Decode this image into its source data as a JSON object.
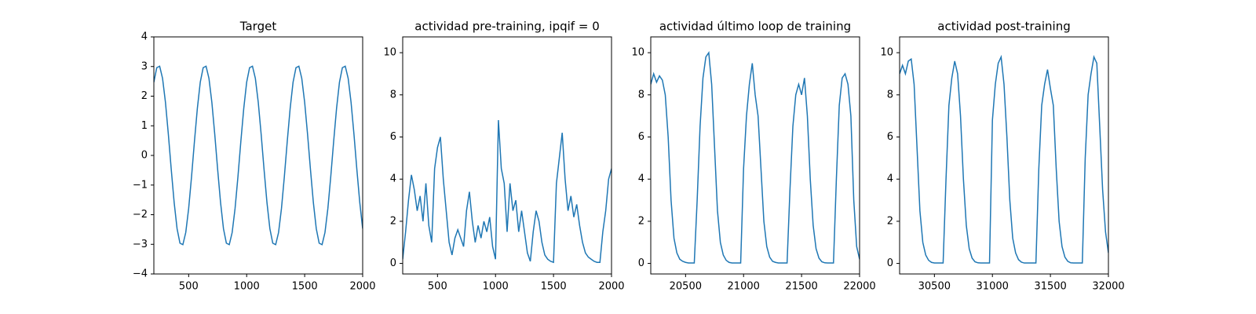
{
  "chart_data": [
    {
      "type": "line",
      "title": "Target",
      "xlim": [
        200,
        2000
      ],
      "ylim": [
        -4,
        4
      ],
      "xticks": [
        500,
        1000,
        1500,
        2000
      ],
      "yticks": [
        {
          "value": -4,
          "label": "−4"
        },
        {
          "value": -3,
          "label": "−3"
        },
        {
          "value": -2,
          "label": "−2"
        },
        {
          "value": -1,
          "label": "−1"
        },
        0,
        1,
        2,
        3,
        4
      ],
      "x": [
        200,
        225,
        250,
        275,
        300,
        325,
        350,
        375,
        400,
        425,
        450,
        475,
        500,
        525,
        550,
        575,
        600,
        625,
        650,
        675,
        700,
        725,
        750,
        775,
        800,
        825,
        850,
        875,
        900,
        925,
        950,
        975,
        1000,
        1025,
        1050,
        1075,
        1100,
        1125,
        1150,
        1175,
        1200,
        1225,
        1250,
        1275,
        1300,
        1325,
        1350,
        1375,
        1400,
        1425,
        1450,
        1475,
        1500,
        1525,
        1550,
        1575,
        1600,
        1625,
        1650,
        1675,
        1700,
        1725,
        1750,
        1775,
        1800,
        1825,
        1850,
        1875,
        1900,
        1925,
        1950,
        1975,
        2000
      ],
      "series": [
        {
          "color": "#1f77b4",
          "values": [
            2.47,
            2.96,
            3.01,
            2.6,
            1.79,
            0.71,
            -0.48,
            -1.59,
            -2.47,
            -2.96,
            -3.01,
            -2.6,
            -1.79,
            -0.71,
            0.48,
            1.59,
            2.47,
            2.96,
            3.01,
            2.6,
            1.79,
            0.71,
            -0.48,
            -1.59,
            -2.47,
            -2.96,
            -3.01,
            -2.6,
            -1.79,
            -0.71,
            0.48,
            1.59,
            2.47,
            2.96,
            3.01,
            2.6,
            1.79,
            0.71,
            -0.48,
            -1.59,
            -2.47,
            -2.96,
            -3.01,
            -2.6,
            -1.79,
            -0.71,
            0.48,
            1.59,
            2.47,
            2.96,
            3.01,
            2.6,
            1.79,
            0.71,
            -0.48,
            -1.59,
            -2.47,
            -2.96,
            -3.01,
            -2.6,
            -1.79,
            -0.71,
            0.48,
            1.59,
            2.47,
            2.96,
            3.01,
            2.6,
            1.79,
            0.71,
            -0.48,
            -1.59,
            -2.47
          ]
        }
      ]
    },
    {
      "type": "line",
      "title": "actividad pre-training, ipqif = 0",
      "xlim": [
        200,
        2000
      ],
      "ylim": [
        -0.5,
        10.75
      ],
      "xticks": [
        500,
        1000,
        1500,
        2000
      ],
      "yticks": [
        0,
        2,
        4,
        6,
        8,
        10
      ],
      "x": [
        200,
        225,
        250,
        275,
        300,
        325,
        350,
        375,
        400,
        425,
        450,
        475,
        500,
        525,
        550,
        575,
        600,
        625,
        650,
        675,
        700,
        725,
        750,
        775,
        800,
        825,
        850,
        875,
        900,
        925,
        950,
        975,
        1000,
        1025,
        1050,
        1075,
        1100,
        1125,
        1150,
        1175,
        1200,
        1225,
        1250,
        1275,
        1300,
        1325,
        1350,
        1375,
        1400,
        1425,
        1450,
        1475,
        1500,
        1525,
        1550,
        1575,
        1600,
        1625,
        1650,
        1675,
        1700,
        1725,
        1750,
        1775,
        1800,
        1825,
        1850,
        1875,
        1900,
        1925,
        1950,
        1975,
        2000
      ],
      "series": [
        {
          "color": "#1f77b4",
          "values": [
            0.2,
            1.5,
            3.0,
            4.2,
            3.5,
            2.5,
            3.2,
            2.0,
            3.8,
            1.8,
            1.0,
            4.5,
            5.5,
            6.0,
            4.0,
            2.5,
            1.0,
            0.4,
            1.2,
            1.6,
            1.2,
            0.8,
            2.5,
            3.4,
            2.0,
            1.0,
            1.8,
            1.2,
            2.0,
            1.5,
            2.2,
            0.8,
            0.2,
            6.8,
            4.5,
            3.8,
            1.5,
            3.8,
            2.5,
            3.0,
            1.5,
            2.5,
            1.5,
            0.5,
            0.1,
            1.5,
            2.5,
            2.0,
            1.0,
            0.4,
            0.2,
            0.1,
            0.05,
            3.8,
            5.0,
            6.2,
            4.0,
            2.5,
            3.2,
            2.2,
            2.8,
            1.8,
            1.0,
            0.5,
            0.3,
            0.2,
            0.1,
            0.05,
            0.05,
            1.5,
            2.5,
            4.0,
            4.5
          ]
        }
      ]
    },
    {
      "type": "line",
      "title": "actividad último loop de training",
      "xlim": [
        20200,
        22000
      ],
      "ylim": [
        -0.5,
        10.75
      ],
      "xticks": [
        20500,
        21000,
        21500,
        22000
      ],
      "yticks": [
        0,
        2,
        4,
        6,
        8,
        10
      ],
      "x": [
        20200,
        20225,
        20250,
        20275,
        20300,
        20325,
        20350,
        20375,
        20400,
        20425,
        20450,
        20475,
        20500,
        20525,
        20550,
        20575,
        20600,
        20625,
        20650,
        20675,
        20700,
        20725,
        20750,
        20775,
        20800,
        20825,
        20850,
        20875,
        20900,
        20925,
        20950,
        20975,
        21000,
        21025,
        21050,
        21075,
        21100,
        21125,
        21150,
        21175,
        21200,
        21225,
        21250,
        21275,
        21300,
        21325,
        21350,
        21375,
        21400,
        21425,
        21450,
        21475,
        21500,
        21525,
        21550,
        21575,
        21600,
        21625,
        21650,
        21675,
        21700,
        21725,
        21750,
        21775,
        21800,
        21825,
        21850,
        21875,
        21900,
        21925,
        21950,
        21975,
        22000
      ],
      "series": [
        {
          "color": "#1f77b4",
          "values": [
            8.5,
            9.0,
            8.6,
            8.9,
            8.7,
            8.0,
            6.0,
            3.0,
            1.2,
            0.5,
            0.2,
            0.1,
            0.05,
            0.02,
            0.02,
            0.02,
            3.0,
            6.5,
            8.8,
            9.8,
            10.0,
            8.5,
            5.5,
            2.5,
            1.0,
            0.4,
            0.15,
            0.05,
            0.02,
            0.02,
            0.02,
            0.02,
            4.5,
            7.0,
            8.5,
            9.5,
            8.0,
            7.0,
            4.5,
            2.0,
            0.8,
            0.3,
            0.1,
            0.05,
            0.02,
            0.02,
            0.02,
            0.02,
            3.5,
            6.5,
            8.0,
            8.5,
            8.0,
            8.8,
            7.0,
            4.0,
            1.8,
            0.7,
            0.25,
            0.08,
            0.03,
            0.02,
            0.02,
            0.02,
            4.0,
            7.5,
            8.8,
            9.0,
            8.5,
            7.0,
            3.0,
            0.8,
            0.2
          ]
        }
      ]
    },
    {
      "type": "line",
      "title": "actividad post-training",
      "xlim": [
        30200,
        32000
      ],
      "ylim": [
        -0.5,
        10.75
      ],
      "xticks": [
        30500,
        31000,
        31500,
        32000
      ],
      "yticks": [
        0,
        2,
        4,
        6,
        8,
        10
      ],
      "x": [
        30200,
        30225,
        30250,
        30275,
        30300,
        30325,
        30350,
        30375,
        30400,
        30425,
        30450,
        30475,
        30500,
        30525,
        30550,
        30575,
        30600,
        30625,
        30650,
        30675,
        30700,
        30725,
        30750,
        30775,
        30800,
        30825,
        30850,
        30875,
        30900,
        30925,
        30950,
        30975,
        31000,
        31025,
        31050,
        31075,
        31100,
        31125,
        31150,
        31175,
        31200,
        31225,
        31250,
        31275,
        31300,
        31325,
        31350,
        31375,
        31400,
        31425,
        31450,
        31475,
        31500,
        31525,
        31550,
        31575,
        31600,
        31625,
        31650,
        31675,
        31700,
        31725,
        31750,
        31775,
        31800,
        31825,
        31850,
        31875,
        31900,
        31925,
        31950,
        31975,
        32000
      ],
      "series": [
        {
          "color": "#1f77b4",
          "values": [
            9.0,
            9.4,
            9.0,
            9.6,
            9.7,
            8.5,
            5.5,
            2.5,
            1.0,
            0.4,
            0.15,
            0.05,
            0.02,
            0.02,
            0.02,
            0.02,
            4.0,
            7.5,
            8.8,
            9.6,
            9.0,
            7.0,
            4.0,
            1.8,
            0.7,
            0.25,
            0.08,
            0.03,
            0.02,
            0.02,
            0.02,
            0.02,
            6.8,
            8.5,
            9.5,
            9.8,
            8.5,
            6.0,
            3.0,
            1.2,
            0.5,
            0.18,
            0.06,
            0.02,
            0.02,
            0.02,
            0.02,
            0.02,
            4.5,
            7.5,
            8.5,
            9.2,
            8.3,
            7.5,
            4.5,
            2.0,
            0.8,
            0.3,
            0.1,
            0.03,
            0.02,
            0.02,
            0.02,
            0.02,
            5.0,
            8.0,
            9.0,
            9.8,
            9.5,
            6.5,
            3.5,
            1.5,
            0.5
          ]
        }
      ]
    }
  ]
}
